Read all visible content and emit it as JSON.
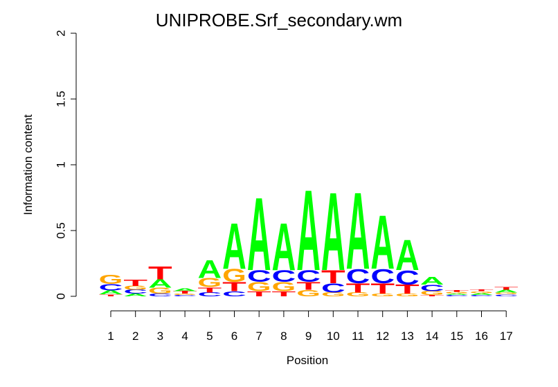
{
  "chart_data": {
    "type": "sequence_logo",
    "title": "UNIPROBE.Srf_secondary.wm",
    "xlabel": "Position",
    "ylabel": "Information content",
    "ylim": [
      0,
      2
    ],
    "yticks": [
      "0",
      "0.5",
      "1",
      "1.5",
      "2"
    ],
    "ytick_values": [
      0,
      0.5,
      1,
      1.5,
      2
    ],
    "positions": [
      "1",
      "2",
      "3",
      "4",
      "5",
      "6",
      "7",
      "8",
      "9",
      "10",
      "11",
      "12",
      "13",
      "14",
      "15",
      "16",
      "17"
    ],
    "colors": {
      "A": "#00ff00",
      "C": "#0000ff",
      "G": "#ffa500",
      "T": "#ff0000"
    },
    "stacks": [
      [
        {
          "l": "T",
          "h": 0.015
        },
        {
          "l": "A",
          "h": 0.03
        },
        {
          "l": "C",
          "h": 0.05
        },
        {
          "l": "G",
          "h": 0.07
        }
      ],
      [
        {
          "l": "A",
          "h": 0.02
        },
        {
          "l": "C",
          "h": 0.03
        },
        {
          "l": "G",
          "h": 0.03
        },
        {
          "l": "T",
          "h": 0.05
        }
      ],
      [
        {
          "l": "C",
          "h": 0.02
        },
        {
          "l": "G",
          "h": 0.045
        },
        {
          "l": "A",
          "h": 0.065
        },
        {
          "l": "T",
          "h": 0.1
        }
      ],
      [
        {
          "l": "C",
          "h": 0.01
        },
        {
          "l": "G",
          "h": 0.01
        },
        {
          "l": "T",
          "h": 0.02
        },
        {
          "l": "A",
          "h": 0.02
        }
      ],
      [
        {
          "l": "C",
          "h": 0.03
        },
        {
          "l": "T",
          "h": 0.04
        },
        {
          "l": "G",
          "h": 0.07
        },
        {
          "l": "A",
          "h": 0.14
        }
      ],
      [
        {
          "l": "C",
          "h": 0.04
        },
        {
          "l": "T",
          "h": 0.07
        },
        {
          "l": "G",
          "h": 0.1
        },
        {
          "l": "A",
          "h": 0.36
        }
      ],
      [
        {
          "l": "T",
          "h": 0.04
        },
        {
          "l": "G",
          "h": 0.07
        },
        {
          "l": "C",
          "h": 0.09
        },
        {
          "l": "A",
          "h": 0.57
        }
      ],
      [
        {
          "l": "T",
          "h": 0.04
        },
        {
          "l": "G",
          "h": 0.07
        },
        {
          "l": "C",
          "h": 0.09
        },
        {
          "l": "A",
          "h": 0.37
        }
      ],
      [
        {
          "l": "G",
          "h": 0.05
        },
        {
          "l": "T",
          "h": 0.06
        },
        {
          "l": "C",
          "h": 0.09
        },
        {
          "l": "A",
          "h": 0.63
        }
      ],
      [
        {
          "l": "G",
          "h": 0.03
        },
        {
          "l": "C",
          "h": 0.07
        },
        {
          "l": "T",
          "h": 0.1
        },
        {
          "l": "A",
          "h": 0.61
        }
      ],
      [
        {
          "l": "G",
          "h": 0.03
        },
        {
          "l": "T",
          "h": 0.07
        },
        {
          "l": "C",
          "h": 0.11
        },
        {
          "l": "A",
          "h": 0.6
        }
      ],
      [
        {
          "l": "G",
          "h": 0.02
        },
        {
          "l": "T",
          "h": 0.08
        },
        {
          "l": "C",
          "h": 0.11
        },
        {
          "l": "A",
          "h": 0.42
        }
      ],
      [
        {
          "l": "G",
          "h": 0.02
        },
        {
          "l": "T",
          "h": 0.07
        },
        {
          "l": "C",
          "h": 0.11
        },
        {
          "l": "A",
          "h": 0.24
        }
      ],
      [
        {
          "l": "T",
          "h": 0.01
        },
        {
          "l": "G",
          "h": 0.03
        },
        {
          "l": "C",
          "h": 0.05
        },
        {
          "l": "A",
          "h": 0.06
        }
      ],
      [
        {
          "l": "C",
          "h": 0.01
        },
        {
          "l": "A",
          "h": 0.01
        },
        {
          "l": "G",
          "h": 0.015
        },
        {
          "l": "T",
          "h": 0.015
        }
      ],
      [
        {
          "l": "C",
          "h": 0.01
        },
        {
          "l": "A",
          "h": 0.015
        },
        {
          "l": "G",
          "h": 0.015
        },
        {
          "l": "T",
          "h": 0.015
        }
      ],
      [
        {
          "l": "C",
          "h": 0.015
        },
        {
          "l": "G",
          "h": 0.015
        },
        {
          "l": "A",
          "h": 0.02
        },
        {
          "l": "T",
          "h": 0.02
        }
      ]
    ]
  }
}
